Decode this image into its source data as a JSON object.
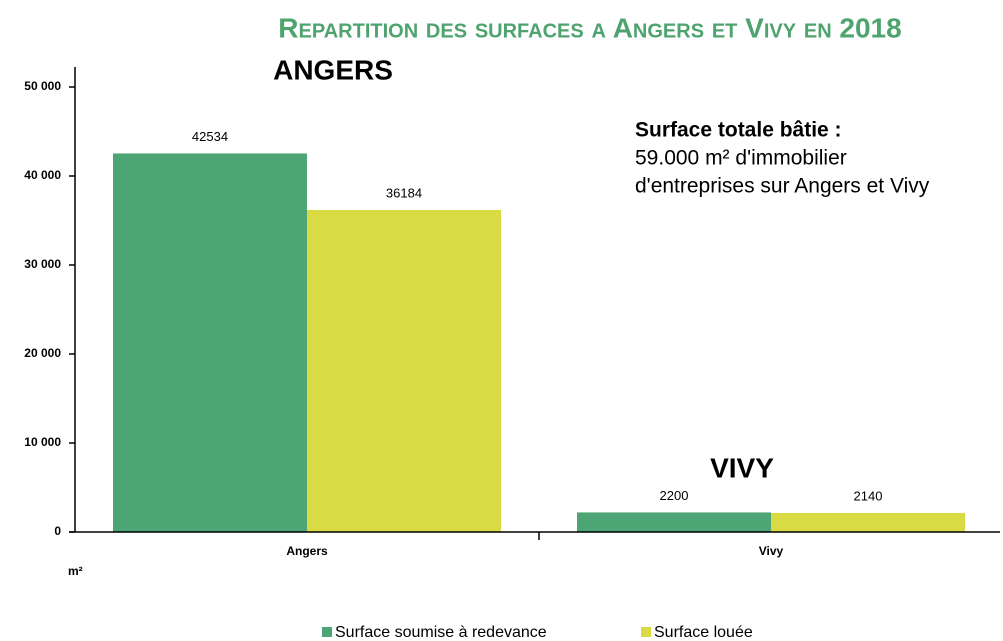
{
  "chart_data": {
    "type": "bar",
    "title": "Repartition des surfaces a Angers et Vivy en 2018",
    "y_label": "m²",
    "categories": [
      "Angers",
      "Vivy"
    ],
    "series": [
      {
        "name": "Surface soumise à redevance",
        "color": "#4da475",
        "values": [
          42534,
          2200
        ]
      },
      {
        "name": "Surface louée",
        "color": "#d8db43",
        "values": [
          36184,
          2140
        ]
      }
    ],
    "ylim": [
      0,
      50000
    ],
    "yticks": [
      0,
      {
        "value": 10000,
        "label": "10 000"
      },
      {
        "value": 20000,
        "label": "20 000"
      },
      {
        "value": 30000,
        "label": "30 000"
      },
      {
        "value": 40000,
        "label": "40 000"
      },
      {
        "value": 50000,
        "label": "50 000"
      }
    ],
    "grid": false,
    "legend": "bottom",
    "annotations": [
      "ANGERS",
      "VIVY",
      "Surface totale bâtie :",
      "59.000 m² d'immobilier",
      "d'entreprises sur Angers et Vivy"
    ]
  }
}
